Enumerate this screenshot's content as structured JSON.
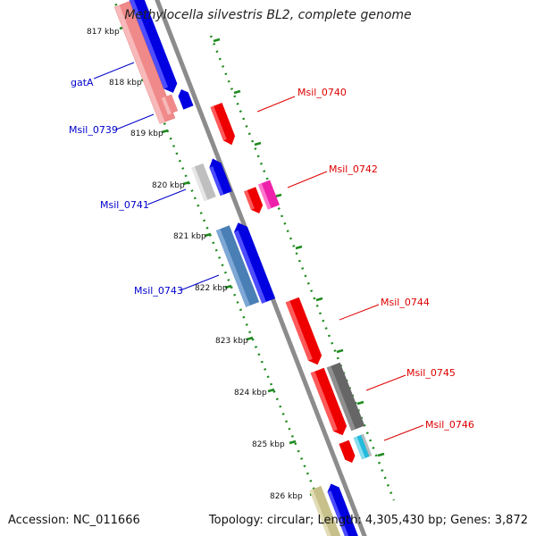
{
  "title": "Methylocella silvestris BL2, complete genome",
  "footer": {
    "accession": "Accession: NC_011666",
    "summary": "Topology: circular; Length: 4,305,430 bp; Genes: 3,872"
  },
  "colors": {
    "backbone": "#8c8c8c",
    "ruler": "#1e8a1e",
    "forward_label": "#0000cc",
    "reverse_label": "#dd0000"
  },
  "ticks": [
    {
      "label": "817 kbp"
    },
    {
      "label": "818 kbp"
    },
    {
      "label": "819 kbp"
    },
    {
      "label": "820 kbp"
    },
    {
      "label": "821 kbp"
    },
    {
      "label": "822 kbp"
    },
    {
      "label": "823 kbp"
    },
    {
      "label": "824 kbp"
    },
    {
      "label": "825 kbp"
    },
    {
      "label": "826 kbp"
    }
  ],
  "labels_left": [
    {
      "text": "gatA",
      "color": "#0000cc"
    },
    {
      "text": "Msil_0739",
      "color": "#0000cc"
    },
    {
      "text": "Msil_0741",
      "color": "#0000cc"
    },
    {
      "text": "Msil_0743",
      "color": "#0000cc"
    }
  ],
  "labels_right": [
    {
      "text": "Msil_0740",
      "color": "#dd0000"
    },
    {
      "text": "Msil_0742",
      "color": "#dd0000"
    },
    {
      "text": "Msil_0744",
      "color": "#dd0000"
    },
    {
      "text": "Msil_0745",
      "color": "#dd0000"
    },
    {
      "text": "Msil_0746",
      "color": "#dd0000"
    }
  ]
}
